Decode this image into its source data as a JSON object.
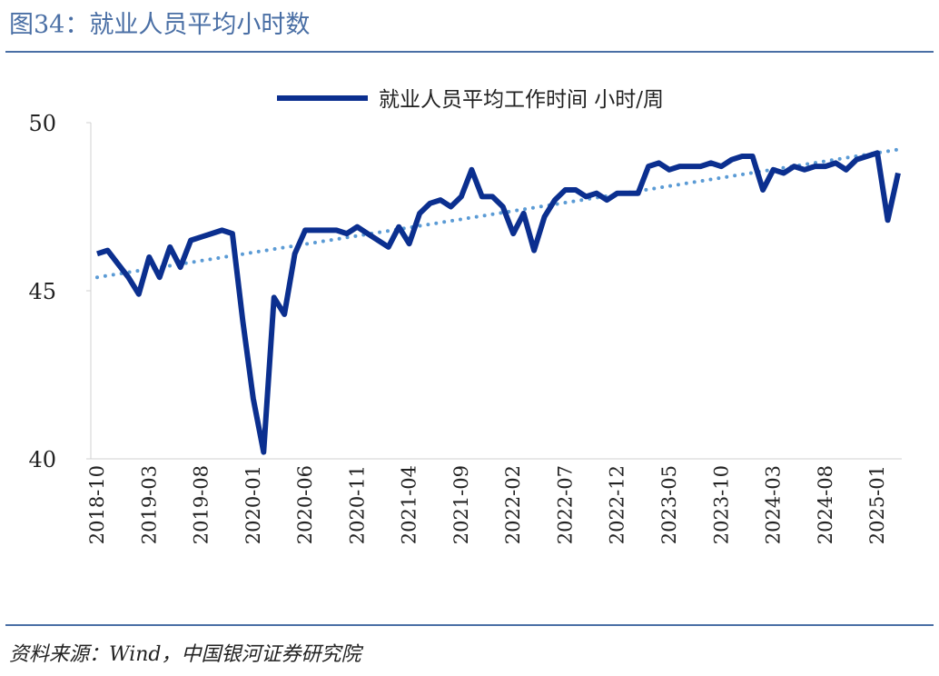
{
  "chart_data": {
    "type": "line",
    "title": "图34：就业人员平均小时数",
    "source": "资料来源：Wind，中国银河证券研究院",
    "categories": [
      "2018-10",
      null,
      null,
      null,
      null,
      "2019-03",
      null,
      null,
      null,
      null,
      "2019-08",
      null,
      null,
      null,
      null,
      "2020-01",
      null,
      null,
      null,
      null,
      "2020-06",
      null,
      null,
      null,
      null,
      "2020-11",
      null,
      null,
      null,
      null,
      "2021-04",
      null,
      null,
      null,
      null,
      "2021-09",
      null,
      null,
      null,
      null,
      "2022-02",
      null,
      null,
      null,
      null,
      "2022-07",
      null,
      null,
      null,
      null,
      "2022-12",
      null,
      null,
      null,
      null,
      "2023-05",
      null,
      null,
      null,
      null,
      "2023-10",
      null,
      null,
      null,
      null,
      "2024-03",
      null,
      null,
      null,
      null,
      "2024-08",
      null,
      null,
      null,
      null,
      "2025-01",
      null,
      null
    ],
    "series": [
      {
        "name": "就业人员平均工作时间 小时/周",
        "color": "#0b2f8f",
        "values": [
          46.1,
          46.2,
          45.8,
          45.4,
          44.9,
          46.0,
          45.4,
          46.3,
          45.7,
          46.5,
          46.6,
          46.7,
          46.8,
          46.7,
          44.1,
          41.8,
          40.2,
          44.8,
          44.3,
          46.1,
          46.8,
          46.8,
          46.8,
          46.8,
          46.7,
          46.9,
          46.7,
          46.5,
          46.3,
          46.9,
          46.4,
          47.3,
          47.6,
          47.7,
          47.5,
          47.8,
          48.6,
          47.8,
          47.8,
          47.5,
          46.7,
          47.3,
          46.2,
          47.2,
          47.7,
          48.0,
          48.0,
          47.8,
          47.9,
          47.7,
          47.9,
          47.9,
          47.9,
          48.7,
          48.8,
          48.6,
          48.7,
          48.7,
          48.7,
          48.8,
          48.7,
          48.9,
          49.0,
          49.0,
          48.0,
          48.6,
          48.5,
          48.7,
          48.6,
          48.7,
          48.7,
          48.8,
          48.6,
          48.9,
          49.0,
          49.1,
          47.1,
          48.5
        ]
      }
    ],
    "trend": {
      "color": "#5b9bd5",
      "start": 45.4,
      "end": 49.2
    },
    "ylim": [
      40,
      50
    ],
    "yticks": [
      40,
      45,
      50
    ]
  }
}
